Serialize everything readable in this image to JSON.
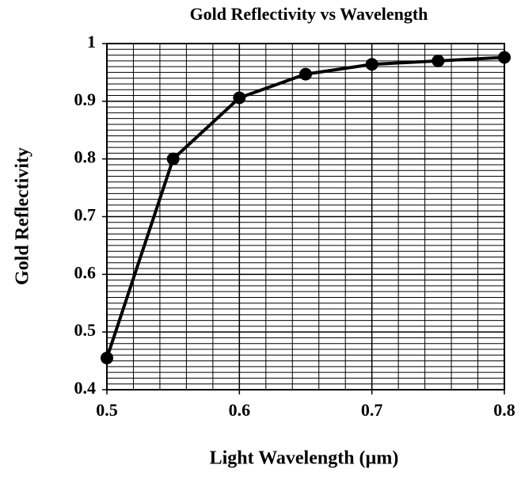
{
  "chart_data": {
    "type": "line",
    "title": "Gold Reflectivity vs Wavelength",
    "x_label": "Light Wavelength (µm)",
    "y_label": "Gold Reflectivity",
    "x": [
      0.5,
      0.55,
      0.6,
      0.65,
      0.7,
      0.75,
      0.8
    ],
    "series": [
      {
        "name": "Gold Reflectivity",
        "color": "#000000",
        "values": [
          0.455,
          0.8,
          0.906,
          0.947,
          0.964,
          0.97,
          0.976
        ]
      }
    ],
    "xlim": [
      0.5,
      0.8
    ],
    "xticks": [
      0.5,
      0.6,
      0.7,
      0.8
    ],
    "ylim": [
      0.4,
      1
    ],
    "yticks": [
      0.4,
      0.5,
      0.6,
      0.7,
      0.8,
      0.9,
      1
    ],
    "grid": true,
    "minor_grid": {
      "x": 5,
      "y": 10
    }
  }
}
